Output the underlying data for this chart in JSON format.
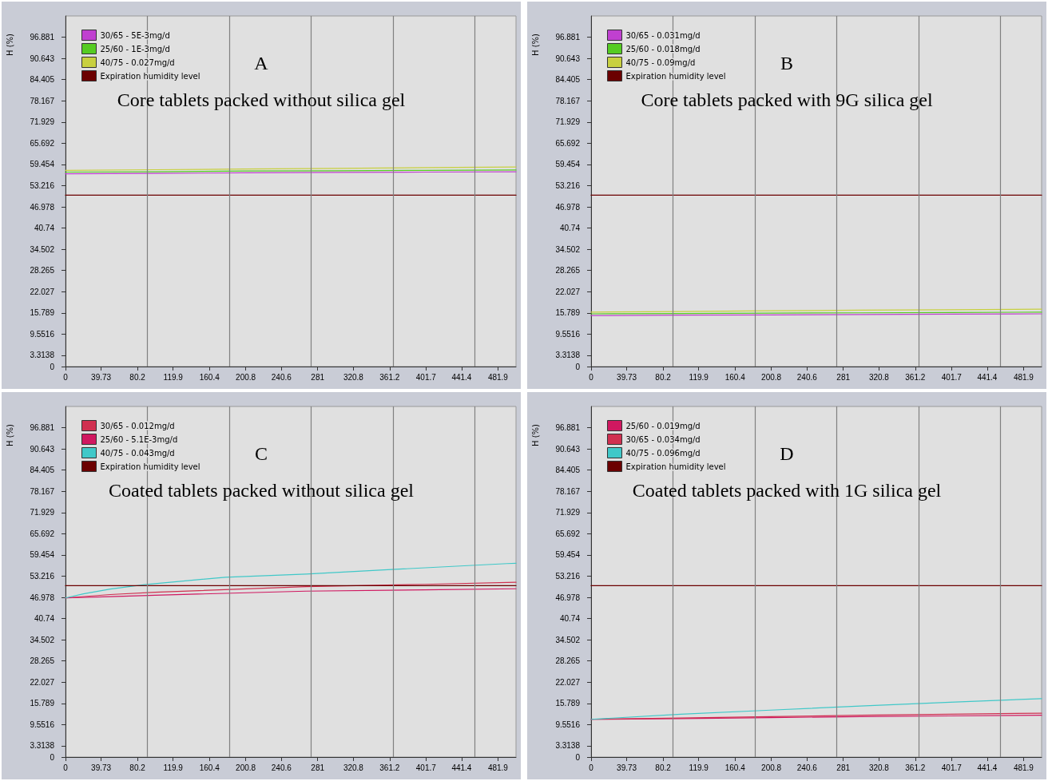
{
  "chart_data": [
    {
      "type": "line",
      "title": "A",
      "subtitle": "Core tablets packed without silica gel",
      "ylabel": "H (%)",
      "xlim": [
        0,
        502
      ],
      "ylim": [
        0,
        103.12
      ],
      "xticks": [
        0,
        39.73,
        80.2,
        119.9,
        160.4,
        200.8,
        240.6,
        281,
        320.8,
        361.2,
        401.7,
        441.4,
        481.9
      ],
      "yticks": [
        0,
        3.3138,
        9.5516,
        15.789,
        22.027,
        28.265,
        34.502,
        40.74,
        46.978,
        53.216,
        59.454,
        65.692,
        71.929,
        78.167,
        84.405,
        90.643,
        96.881
      ],
      "grid": false,
      "legend": "top left",
      "marker": "none",
      "line_style": "solid",
      "ref_lines": [
        {
          "axis": "x",
          "value": 91.25,
          "color": "#808080"
        },
        {
          "axis": "x",
          "value": 182.5,
          "color": "#808080"
        },
        {
          "axis": "x",
          "value": 273.75,
          "color": "#808080"
        },
        {
          "axis": "x",
          "value": 365,
          "color": "#808080"
        },
        {
          "axis": "x",
          "value": 456.25,
          "color": "#808080"
        }
      ],
      "series": [
        {
          "name": "30/65 - 5E-3mg/d",
          "color": "#c040d0",
          "x": [
            0,
            100,
            200,
            300,
            400,
            502
          ],
          "values": [
            56.7,
            56.8,
            57.0,
            57.1,
            57.2,
            57.3
          ]
        },
        {
          "name": "25/60 - 1E-3mg/d",
          "color": "#55cc22",
          "x": [
            0,
            100,
            200,
            300,
            400,
            502
          ],
          "values": [
            57.2,
            57.3,
            57.5,
            57.6,
            57.7,
            57.8
          ]
        },
        {
          "name": "40/75 - 0.027mg/d",
          "color": "#c8d040",
          "x": [
            0,
            100,
            200,
            300,
            400,
            502
          ],
          "values": [
            57.7,
            57.9,
            58.1,
            58.3,
            58.5,
            58.7
          ]
        },
        {
          "name": "Expiration humidity level",
          "color": "#6b0000",
          "x": [
            0,
            502
          ],
          "values": [
            50.4,
            50.4
          ]
        }
      ]
    },
    {
      "type": "line",
      "title": "B",
      "subtitle": "Core tablets packed with 9G silica gel",
      "ylabel": "H (%)",
      "xlim": [
        0,
        502
      ],
      "ylim": [
        0,
        103.12
      ],
      "xticks": [
        0,
        39.73,
        80.2,
        119.9,
        160.4,
        200.8,
        240.6,
        281,
        320.8,
        361.2,
        401.7,
        441.4,
        481.9
      ],
      "yticks": [
        0,
        3.3138,
        9.5516,
        15.789,
        22.027,
        28.265,
        34.502,
        40.74,
        46.978,
        53.216,
        59.454,
        65.692,
        71.929,
        78.167,
        84.405,
        90.643,
        96.881
      ],
      "grid": false,
      "legend": "top left",
      "marker": "none",
      "line_style": "solid",
      "ref_lines": [
        {
          "axis": "x",
          "value": 91.25,
          "color": "#808080"
        },
        {
          "axis": "x",
          "value": 182.5,
          "color": "#808080"
        },
        {
          "axis": "x",
          "value": 273.75,
          "color": "#808080"
        },
        {
          "axis": "x",
          "value": 365,
          "color": "#808080"
        },
        {
          "axis": "x",
          "value": 456.25,
          "color": "#808080"
        }
      ],
      "series": [
        {
          "name": "30/65 - 0.031mg/d",
          "color": "#c040d0",
          "x": [
            0,
            100,
            200,
            300,
            400,
            502
          ],
          "values": [
            15.0,
            15.1,
            15.2,
            15.3,
            15.4,
            15.5
          ]
        },
        {
          "name": "25/60 - 0.018mg/d",
          "color": "#55cc22",
          "x": [
            0,
            100,
            200,
            300,
            400,
            502
          ],
          "values": [
            15.5,
            15.6,
            15.7,
            15.8,
            15.9,
            16.0
          ]
        },
        {
          "name": "40/75 - 0.09mg/d",
          "color": "#c8d040",
          "x": [
            0,
            100,
            200,
            300,
            400,
            502
          ],
          "values": [
            16.0,
            16.2,
            16.4,
            16.6,
            16.7,
            16.9
          ]
        },
        {
          "name": "Expiration humidity level",
          "color": "#6b0000",
          "x": [
            0,
            502
          ],
          "values": [
            50.4,
            50.4
          ]
        }
      ]
    },
    {
      "type": "line",
      "title": "C",
      "subtitle": "Coated tablets packed without silica gel",
      "ylabel": "H (%)",
      "xlim": [
        0,
        502
      ],
      "ylim": [
        0,
        103.12
      ],
      "xticks": [
        0,
        39.73,
        80.2,
        119.9,
        160.4,
        200.8,
        240.6,
        281,
        320.8,
        361.2,
        401.7,
        441.4,
        481.9
      ],
      "yticks": [
        0,
        3.3138,
        9.5516,
        15.789,
        22.027,
        28.265,
        34.502,
        40.74,
        46.978,
        53.216,
        59.454,
        65.692,
        71.929,
        78.167,
        84.405,
        90.643,
        96.881
      ],
      "grid": false,
      "legend": "top left",
      "marker": "none",
      "line_style": "solid",
      "ref_lines": [
        {
          "axis": "x",
          "value": 91.25,
          "color": "#808080"
        },
        {
          "axis": "x",
          "value": 182.5,
          "color": "#808080"
        },
        {
          "axis": "x",
          "value": 273.75,
          "color": "#808080"
        },
        {
          "axis": "x",
          "value": 365,
          "color": "#808080"
        },
        {
          "axis": "x",
          "value": 456.25,
          "color": "#808080"
        }
      ],
      "series": [
        {
          "name": "30/65 - 0.012mg/d",
          "color": "#d03050",
          "x": [
            0,
            50,
            100,
            268,
            400,
            502
          ],
          "values": [
            46.8,
            47.8,
            48.5,
            50.1,
            50.8,
            51.4
          ]
        },
        {
          "name": "25/60 - 5.1E-3mg/d",
          "color": "#d01860",
          "x": [
            0,
            50,
            100,
            268,
            400,
            502
          ],
          "values": [
            46.8,
            47.2,
            47.6,
            48.8,
            49.2,
            49.5
          ]
        },
        {
          "name": "40/75 - 0.043mg/d",
          "color": "#40c8c8",
          "x": [
            0,
            20,
            50,
            88,
            178,
            268,
            359,
            492,
            502
          ],
          "values": [
            46.8,
            48.0,
            49.4,
            50.7,
            52.9,
            53.8,
            55.1,
            56.9,
            57.0
          ]
        },
        {
          "name": "Expiration humidity level",
          "color": "#6b0000",
          "x": [
            0,
            502
          ],
          "values": [
            50.4,
            50.4
          ]
        }
      ]
    },
    {
      "type": "line",
      "title": "D",
      "subtitle": "Coated tablets packed with 1G silica gel",
      "ylabel": "H (%)",
      "xlim": [
        0,
        502
      ],
      "ylim": [
        0,
        103.12
      ],
      "xticks": [
        0,
        39.73,
        80.2,
        119.9,
        160.4,
        200.8,
        240.6,
        281,
        320.8,
        361.2,
        401.7,
        441.4,
        481.9
      ],
      "yticks": [
        0,
        3.3138,
        9.5516,
        15.789,
        22.027,
        28.265,
        34.502,
        40.74,
        46.978,
        53.216,
        59.454,
        65.692,
        71.929,
        78.167,
        84.405,
        90.643,
        96.881
      ],
      "grid": false,
      "legend": "top left",
      "marker": "none",
      "line_style": "solid",
      "ref_lines": [
        {
          "axis": "x",
          "value": 91.25,
          "color": "#808080"
        },
        {
          "axis": "x",
          "value": 182.5,
          "color": "#808080"
        },
        {
          "axis": "x",
          "value": 273.75,
          "color": "#808080"
        },
        {
          "axis": "x",
          "value": 365,
          "color": "#808080"
        },
        {
          "axis": "x",
          "value": 456.25,
          "color": "#808080"
        }
      ],
      "series": [
        {
          "name": "25/60 - 0.019mg/d",
          "color": "#d01860",
          "x": [
            0,
            100,
            200,
            300,
            400,
            502
          ],
          "values": [
            11.1,
            11.3,
            11.6,
            11.9,
            12.1,
            12.3
          ]
        },
        {
          "name": "30/65 - 0.034mg/d",
          "color": "#d03050",
          "x": [
            0,
            100,
            200,
            300,
            400,
            502
          ],
          "values": [
            11.1,
            11.5,
            11.9,
            12.3,
            12.6,
            12.9
          ]
        },
        {
          "name": "40/75 - 0.096mg/d",
          "color": "#40c8c8",
          "x": [
            0,
            100,
            200,
            300,
            400,
            502
          ],
          "values": [
            11.1,
            12.6,
            13.8,
            15.0,
            16.1,
            17.2
          ]
        },
        {
          "name": "Expiration humidity level",
          "color": "#6b0000",
          "x": [
            0,
            502
          ],
          "values": [
            50.4,
            50.4
          ]
        }
      ]
    }
  ]
}
